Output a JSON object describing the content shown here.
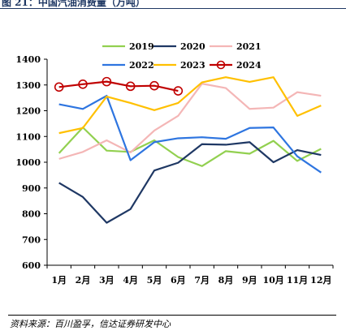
{
  "figure": {
    "title": "图 21：中国汽油消费量（万吨）",
    "source": "资料来源：百川盈孚，信达证券研发中心"
  },
  "chart_data": {
    "type": "line",
    "title": "",
    "xlabel": "",
    "ylabel": "",
    "categories": [
      "1月",
      "2月",
      "3月",
      "4月",
      "5月",
      "6月",
      "7月",
      "8月",
      "9月",
      "10月",
      "11月",
      "12月"
    ],
    "ylim": [
      600,
      1400
    ],
    "yticks": [
      600,
      700,
      800,
      900,
      1000,
      1100,
      1200,
      1300,
      1400
    ],
    "grid": false,
    "legend_position": "top",
    "series": [
      {
        "name": "2019",
        "color": "#92d050",
        "marker": "none",
        "values": [
          1035,
          1135,
          1045,
          1040,
          1085,
          1020,
          985,
          1043,
          1033,
          1083,
          1005,
          1052
        ]
      },
      {
        "name": "2020",
        "color": "#1f3864",
        "marker": "none",
        "values": [
          920,
          865,
          765,
          818,
          968,
          998,
          1070,
          1068,
          1078,
          1000,
          1047,
          1028
        ]
      },
      {
        "name": "2021",
        "color": "#f4b6b6",
        "marker": "none",
        "values": [
          1013,
          1040,
          1085,
          1038,
          1123,
          1180,
          1305,
          1288,
          1207,
          1212,
          1272,
          1258
        ]
      },
      {
        "name": "2022",
        "color": "#2e75e0",
        "marker": "none",
        "values": [
          1225,
          1207,
          1258,
          1008,
          1078,
          1093,
          1097,
          1091,
          1133,
          1135,
          1023,
          960
        ]
      },
      {
        "name": "2023",
        "color": "#ffc000",
        "marker": "none",
        "values": [
          1113,
          1133,
          1255,
          1230,
          1202,
          1230,
          1310,
          1330,
          1312,
          1330,
          1180,
          1220
        ]
      },
      {
        "name": "2024",
        "color": "#c00000",
        "marker": "circle",
        "values": [
          1292,
          1303,
          1313,
          1295,
          1297,
          1277,
          null,
          null,
          null,
          null,
          null,
          null
        ]
      }
    ]
  }
}
